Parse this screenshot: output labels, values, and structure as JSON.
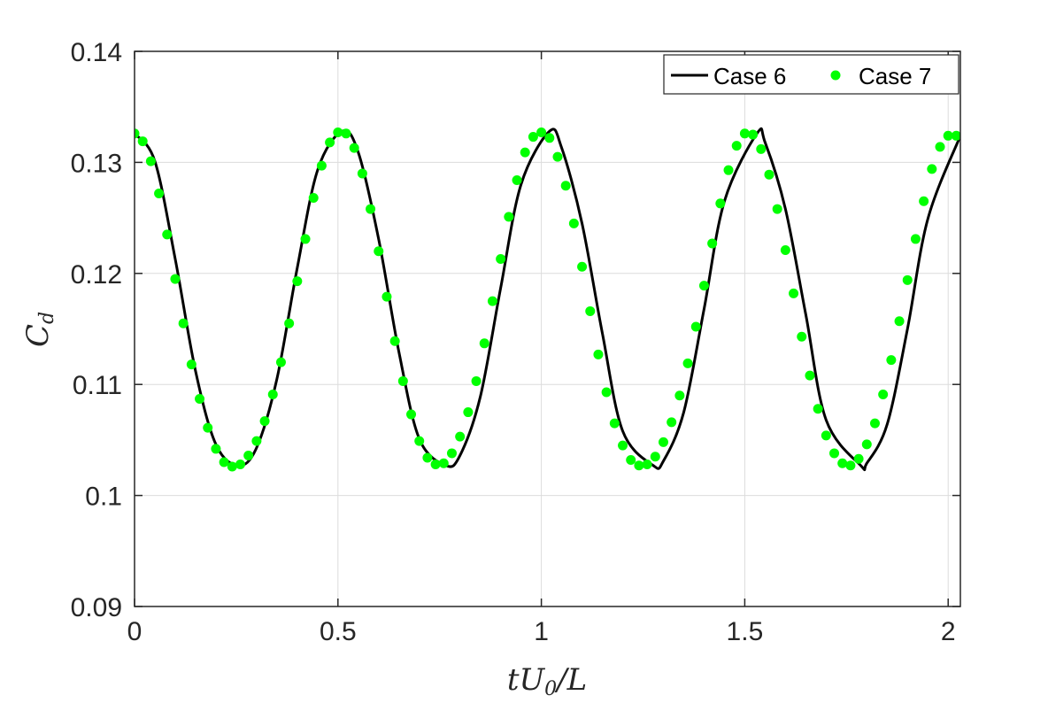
{
  "chart_data": {
    "type": "line",
    "xlabel": "tU0/L",
    "ylabel": "Cd",
    "xlim": [
      0,
      2.03
    ],
    "ylim": [
      0.09,
      0.14
    ],
    "x_ticks": [
      0,
      0.5,
      1,
      1.5,
      2
    ],
    "x_tick_labels": [
      "0",
      "0.5",
      "1",
      "1.5",
      "2"
    ],
    "y_ticks": [
      0.09,
      0.1,
      0.11,
      0.12,
      0.13,
      0.14
    ],
    "y_tick_labels": [
      "0.09",
      "0.1",
      "0.11",
      "0.12",
      "0.13",
      "0.14"
    ],
    "grid": true,
    "legend_position": "top-right",
    "series": [
      {
        "name": "Case 6",
        "style": "line",
        "color": "#000000",
        "x": [
          0,
          0.05,
          0.1,
          0.15,
          0.2,
          0.255,
          0.3,
          0.35,
          0.4,
          0.45,
          0.51,
          0.55,
          0.6,
          0.65,
          0.7,
          0.765,
          0.8,
          0.85,
          0.9,
          0.95,
          1.02,
          1.05,
          1.1,
          1.15,
          1.2,
          1.275,
          1.3,
          1.35,
          1.4,
          1.45,
          1.53,
          1.55,
          1.6,
          1.65,
          1.7,
          1.785,
          1.8,
          1.85,
          1.9,
          1.95,
          2.03
        ],
        "y": [
          0.1326,
          0.1301,
          0.1213,
          0.1112,
          0.1046,
          0.1027,
          0.1043,
          0.1105,
          0.1205,
          0.1293,
          0.1328,
          0.1309,
          0.1231,
          0.1129,
          0.1051,
          0.1027,
          0.1036,
          0.1089,
          0.1187,
          0.128,
          0.1328,
          0.1313,
          0.1245,
          0.1146,
          0.1058,
          0.1027,
          0.1031,
          0.1075,
          0.1168,
          0.1265,
          0.1326,
          0.1318,
          0.1258,
          0.1163,
          0.1068,
          0.1027,
          0.1029,
          0.1064,
          0.115,
          0.1249,
          0.1324
        ]
      },
      {
        "name": "Case 7",
        "style": "markers",
        "color": "#00ff00",
        "x": [
          0,
          0.02,
          0.04,
          0.06,
          0.08,
          0.1,
          0.12,
          0.14,
          0.16,
          0.18,
          0.2,
          0.22,
          0.24,
          0.26,
          0.28,
          0.3,
          0.32,
          0.34,
          0.36,
          0.38,
          0.4,
          0.42,
          0.44,
          0.46,
          0.48,
          0.5,
          0.52,
          0.54,
          0.56,
          0.58,
          0.6,
          0.62,
          0.64,
          0.66,
          0.68,
          0.7,
          0.72,
          0.74,
          0.76,
          0.78,
          0.8,
          0.82,
          0.84,
          0.86,
          0.88,
          0.9,
          0.92,
          0.94,
          0.96,
          0.98,
          1.0,
          1.02,
          1.04,
          1.06,
          1.08,
          1.1,
          1.12,
          1.14,
          1.16,
          1.18,
          1.2,
          1.22,
          1.24,
          1.26,
          1.28,
          1.3,
          1.32,
          1.34,
          1.36,
          1.38,
          1.4,
          1.42,
          1.44,
          1.46,
          1.48,
          1.5,
          1.52,
          1.54,
          1.56,
          1.58,
          1.6,
          1.62,
          1.64,
          1.66,
          1.68,
          1.7,
          1.72,
          1.74,
          1.76,
          1.78,
          1.8,
          1.82,
          1.84,
          1.86,
          1.88,
          1.9,
          1.92,
          1.94,
          1.96,
          1.98,
          2.0,
          2.02
        ],
        "y": [
          0.1326,
          0.1319,
          0.1301,
          0.1272,
          0.1235,
          0.1195,
          0.1155,
          0.1118,
          0.1087,
          0.1061,
          0.1042,
          0.103,
          0.1026,
          0.1028,
          0.1036,
          0.1049,
          0.1067,
          0.1091,
          0.112,
          0.1155,
          0.1193,
          0.1231,
          0.1268,
          0.1297,
          0.1318,
          0.1327,
          0.1326,
          0.1313,
          0.129,
          0.1258,
          0.122,
          0.1179,
          0.1139,
          0.1103,
          0.1073,
          0.1049,
          0.1034,
          0.1028,
          0.1029,
          0.1038,
          0.1053,
          0.1075,
          0.1103,
          0.1137,
          0.1175,
          0.1213,
          0.1251,
          0.1284,
          0.1309,
          0.1323,
          0.1327,
          0.1322,
          0.1305,
          0.1279,
          0.1245,
          0.1206,
          0.1166,
          0.1127,
          0.1093,
          0.1065,
          0.1045,
          0.1032,
          0.1027,
          0.1028,
          0.1035,
          0.1048,
          0.1066,
          0.109,
          0.1119,
          0.1152,
          0.1189,
          0.1227,
          0.1263,
          0.1293,
          0.1315,
          0.1326,
          0.1325,
          0.1312,
          0.1289,
          0.1258,
          0.1221,
          0.1182,
          0.1143,
          0.1108,
          0.1078,
          0.1054,
          0.1038,
          0.1029,
          0.1027,
          0.1033,
          0.1046,
          0.1065,
          0.1091,
          0.1122,
          0.1157,
          0.1194,
          0.1231,
          0.1265,
          0.1294,
          0.1314,
          0.1324,
          0.1324
        ]
      }
    ]
  }
}
